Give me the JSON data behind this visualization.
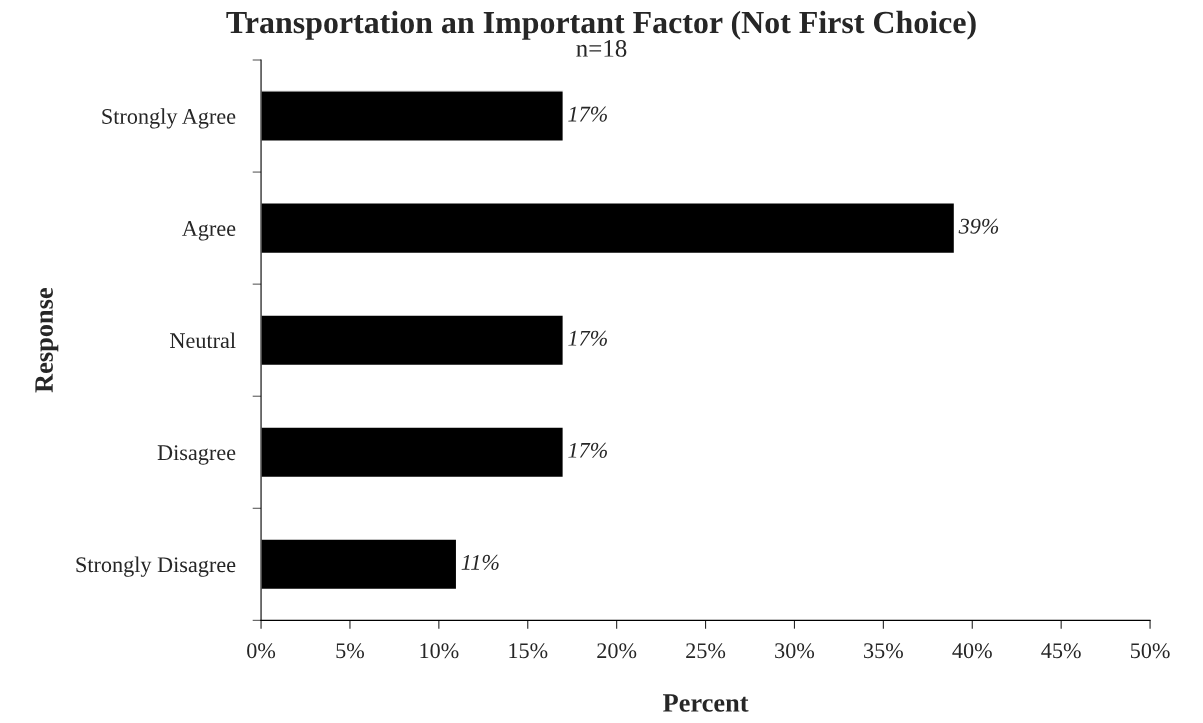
{
  "chart_data": {
    "type": "bar",
    "orientation": "horizontal",
    "title": "Transportation an Important Factor (Not First Choice)",
    "subtitle": "n=18",
    "xlabel": "Percent",
    "ylabel": "Response",
    "categories": [
      "Strongly Agree",
      "Agree",
      "Neutral",
      "Disagree",
      "Strongly Disagree"
    ],
    "values": [
      17,
      39,
      17,
      17,
      11
    ],
    "value_labels": [
      "17%",
      "39%",
      "17%",
      "17%",
      "11%"
    ],
    "color": "#000000",
    "xlim": [
      0,
      50
    ],
    "xticks": [
      {
        "value": 0,
        "label": "0%"
      },
      {
        "value": 5,
        "label": "5%"
      },
      {
        "value": 10,
        "label": "10%"
      },
      {
        "value": 15,
        "label": "15%"
      },
      {
        "value": 20,
        "label": "20%"
      },
      {
        "value": 25,
        "label": "25%"
      },
      {
        "value": 30,
        "label": "30%"
      },
      {
        "value": 35,
        "label": "35%"
      },
      {
        "value": 40,
        "label": "40%"
      },
      {
        "value": 45,
        "label": "45%"
      },
      {
        "value": 50,
        "label": "50%"
      }
    ],
    "grid": false,
    "legend": false
  }
}
